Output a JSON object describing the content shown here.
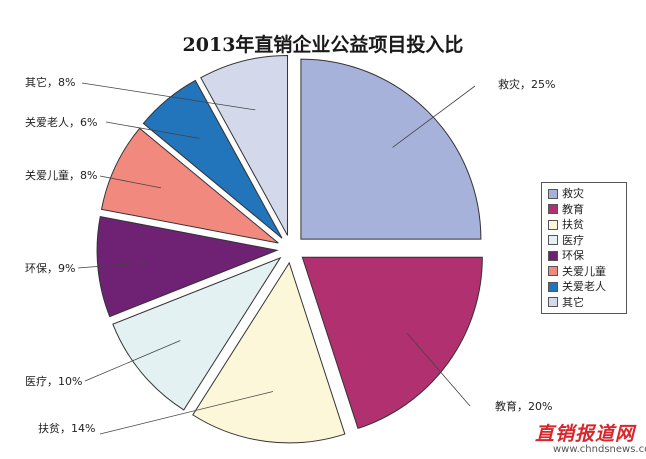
{
  "chart_data": {
    "type": "pie",
    "title": "2013年直销企业公益项目投入比",
    "categories": [
      "救灾",
      "教育",
      "扶贫",
      "医疗",
      "环保",
      "关爱儿童",
      "关爱老人",
      "其它"
    ],
    "values": [
      25,
      20,
      14,
      10,
      9,
      8,
      6,
      8
    ],
    "data_labels": [
      "救灾，25%",
      "教育，20%",
      "扶贫，14%",
      "医疗，10%",
      "环保，9%",
      "关爱儿童，8%",
      "关爱老人，6%",
      "其它，8%"
    ],
    "colors": [
      "#a7b2da",
      "#b03070",
      "#fcf7d8",
      "#e3f1f2",
      "#6f2274",
      "#f2897e",
      "#2274bb",
      "#d4d8eb"
    ],
    "legend_position": "right",
    "exploded": true
  },
  "watermark": {
    "brand": "直销报道网",
    "url": "www.chndsnews.com"
  }
}
